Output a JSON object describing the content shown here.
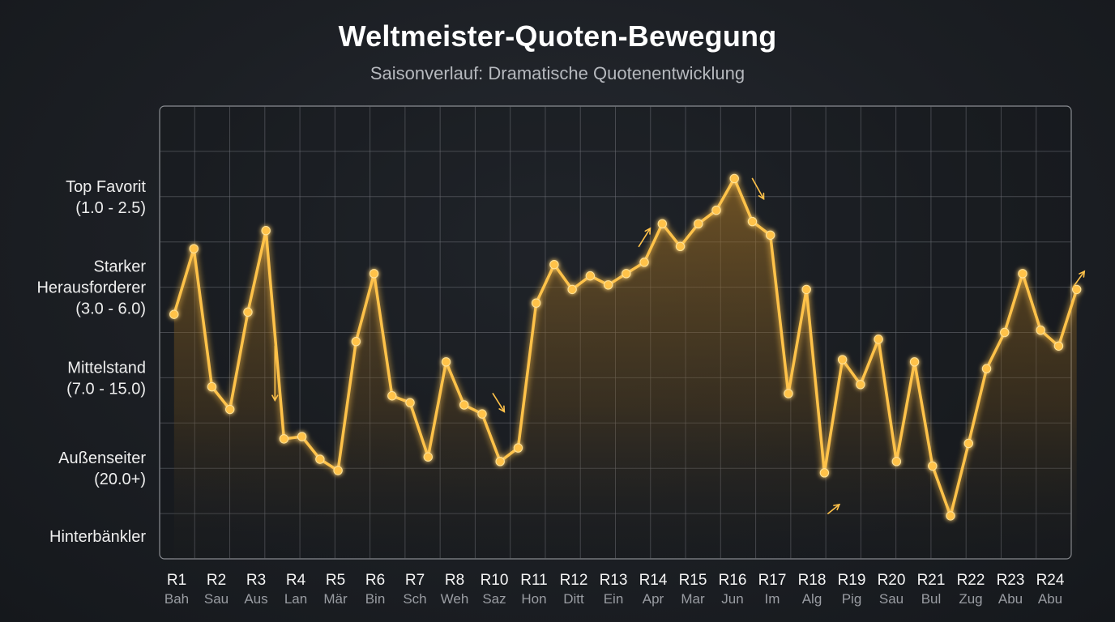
{
  "chart_data": {
    "type": "line",
    "title": "Weltmeister-Quoten-Bewegung",
    "subtitle": "Saisonverlauf: Dramatische Quotenentwicklung",
    "y_scale": "rank (higher = stronger favourite)",
    "ylim": [
      0,
      10
    ],
    "y_tick_labels": [
      {
        "value": 8,
        "lines": [
          "Top Favorit",
          "(1.0 - 2.5)"
        ]
      },
      {
        "value": 6,
        "lines": [
          "Starker",
          "Herausforderer",
          "(3.0 - 6.0)"
        ]
      },
      {
        "value": 4,
        "lines": [
          "Mittelstand",
          "(7.0 - 15.0)"
        ]
      },
      {
        "value": 2,
        "lines": [
          "Außenseiter",
          "(20.0+)"
        ]
      },
      {
        "value": 0.5,
        "lines": [
          "Hinterbänkler"
        ]
      }
    ],
    "categories": [
      {
        "round": "R1",
        "venue": "Bah"
      },
      {
        "round": "R2",
        "venue": "Sau"
      },
      {
        "round": "R3",
        "venue": "Aus"
      },
      {
        "round": "R4",
        "venue": "Lan"
      },
      {
        "round": "R5",
        "venue": "Mär"
      },
      {
        "round": "R6",
        "venue": "Bin"
      },
      {
        "round": "R7",
        "venue": "Sch"
      },
      {
        "round": "R8",
        "venue": "Weh"
      },
      {
        "round": "R10",
        "venue": "Saz"
      },
      {
        "round": "R11",
        "venue": "Hon"
      },
      {
        "round": "R12",
        "venue": "Ditt"
      },
      {
        "round": "R13",
        "venue": "Ein"
      },
      {
        "round": "R14",
        "venue": "Apr"
      },
      {
        "round": "R15",
        "venue": "Mar"
      },
      {
        "round": "R16",
        "venue": "Jun"
      },
      {
        "round": "R17",
        "venue": "Im"
      },
      {
        "round": "R18",
        "venue": "Alg"
      },
      {
        "round": "R19",
        "venue": "Pig"
      },
      {
        "round": "R20",
        "venue": "Sau"
      },
      {
        "round": "R21",
        "venue": "Bul"
      },
      {
        "round": "R22",
        "venue": "Zug"
      },
      {
        "round": "R23",
        "venue": "Abu"
      },
      {
        "round": "R24",
        "venue": "Abu"
      }
    ],
    "x_range": [
      0,
      25.3
    ],
    "series": [
      {
        "points": [
          {
            "x": 0.4,
            "y": 5.4
          },
          {
            "x": 0.95,
            "y": 6.85
          },
          {
            "x": 1.45,
            "y": 3.8
          },
          {
            "x": 1.95,
            "y": 3.3
          },
          {
            "x": 2.45,
            "y": 5.45
          },
          {
            "x": 2.95,
            "y": 7.25
          },
          {
            "x": 3.45,
            "y": 2.65
          },
          {
            "x": 3.95,
            "y": 2.7
          },
          {
            "x": 4.45,
            "y": 2.2
          },
          {
            "x": 4.95,
            "y": 1.95
          },
          {
            "x": 5.45,
            "y": 4.8
          },
          {
            "x": 5.95,
            "y": 6.3
          },
          {
            "x": 6.45,
            "y": 3.6
          },
          {
            "x": 6.95,
            "y": 3.45
          },
          {
            "x": 7.45,
            "y": 2.25
          },
          {
            "x": 7.95,
            "y": 4.35
          },
          {
            "x": 8.45,
            "y": 3.4
          },
          {
            "x": 8.95,
            "y": 3.2
          },
          {
            "x": 9.45,
            "y": 2.15
          },
          {
            "x": 9.95,
            "y": 2.45
          },
          {
            "x": 10.45,
            "y": 5.65
          },
          {
            "x": 10.95,
            "y": 6.5
          },
          {
            "x": 11.45,
            "y": 5.95
          },
          {
            "x": 11.95,
            "y": 6.25
          },
          {
            "x": 12.45,
            "y": 6.05
          },
          {
            "x": 12.95,
            "y": 6.3
          },
          {
            "x": 13.45,
            "y": 6.55
          },
          {
            "x": 13.95,
            "y": 7.4
          },
          {
            "x": 14.45,
            "y": 6.9
          },
          {
            "x": 14.95,
            "y": 7.4
          },
          {
            "x": 15.45,
            "y": 7.7
          },
          {
            "x": 15.95,
            "y": 8.4
          },
          {
            "x": 16.45,
            "y": 7.45
          },
          {
            "x": 16.95,
            "y": 7.15
          },
          {
            "x": 17.45,
            "y": 3.65
          },
          {
            "x": 17.95,
            "y": 5.95
          },
          {
            "x": 18.45,
            "y": 1.9
          },
          {
            "x": 18.95,
            "y": 4.4
          },
          {
            "x": 19.45,
            "y": 3.85
          },
          {
            "x": 19.95,
            "y": 4.85
          },
          {
            "x": 20.45,
            "y": 2.15
          },
          {
            "x": 20.95,
            "y": 4.35
          },
          {
            "x": 21.45,
            "y": 2.05
          },
          {
            "x": 21.95,
            "y": 0.95
          },
          {
            "x": 22.45,
            "y": 2.55
          },
          {
            "x": 22.95,
            "y": 4.2
          },
          {
            "x": 23.45,
            "y": 5.0
          },
          {
            "x": 23.95,
            "y": 6.3
          },
          {
            "x": 24.45,
            "y": 5.05
          },
          {
            "x": 24.95,
            "y": 4.7
          },
          {
            "x": 25.45,
            "y": 5.95
          }
        ]
      }
    ],
    "annotations": [
      {
        "type": "arrow",
        "direction": "down",
        "x": 3.2,
        "y1": 4.7,
        "y2": 3.5
      },
      {
        "type": "arrow",
        "direction": "down-right",
        "x": 9.25,
        "y1": 3.65,
        "y2": 3.25
      },
      {
        "type": "arrow",
        "direction": "up-right",
        "x": 13.3,
        "y1": 6.9,
        "y2": 7.3
      },
      {
        "type": "arrow",
        "direction": "down-right",
        "x": 16.45,
        "y1": 8.4,
        "y2": 7.95
      },
      {
        "type": "arrow",
        "direction": "up-right",
        "x": 18.55,
        "y1": 1.0,
        "y2": 1.2
      },
      {
        "type": "arrow",
        "direction": "up-right",
        "x": 25.35,
        "y1": 6.0,
        "y2": 6.35
      }
    ],
    "grid": true,
    "colors": {
      "line": "#ffc24a",
      "line_glow": "#ffab2e",
      "marker": "#ffc24a",
      "area_top": "#b07a24",
      "grid": "#6b6e74",
      "plot_border": "#8a8d92"
    }
  }
}
